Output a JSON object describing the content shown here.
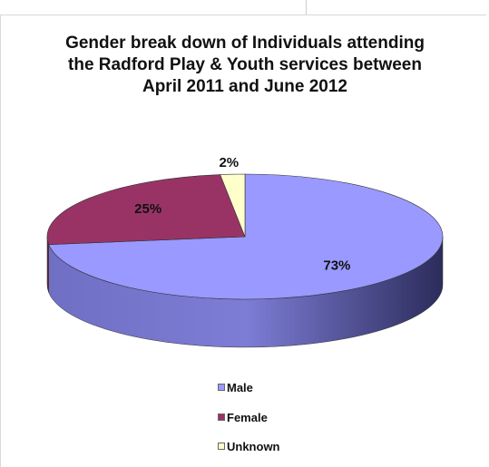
{
  "chart_data": {
    "type": "pie",
    "title": "Gender break down of Individuals attending\nthe Radford Play & Youth services between\nApril 2011 and June 2012",
    "categories": [
      "Male",
      "Female",
      "Unknown"
    ],
    "values": [
      73,
      25,
      2
    ],
    "data_labels": [
      "73%",
      "25%",
      "2%"
    ],
    "colors": [
      "#9999FF",
      "#993366",
      "#FFFFCC"
    ],
    "style": "3d",
    "legend": "bottom-center"
  }
}
